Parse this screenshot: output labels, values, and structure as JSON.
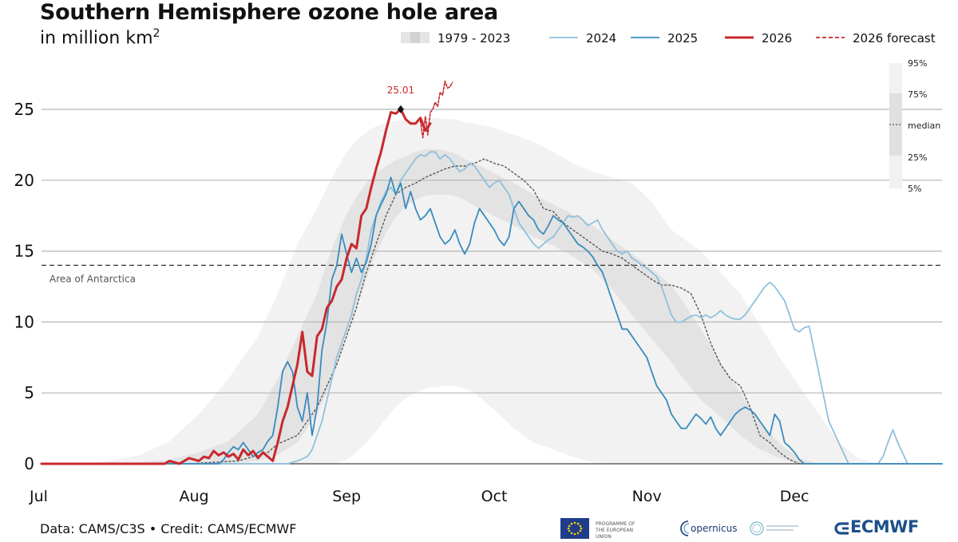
{
  "title": "Southern Hemisphere ozone hole area",
  "subtitle_prefix": "in million km",
  "subtitle_sup": "2",
  "credit": "Data: CAMS/C3S • Credit: CAMS/ECMWF",
  "logos": {
    "eu_line1": "PROGRAMME OF",
    "eu_line2": "THE EUROPEAN UNION",
    "copernicus": "opernicus",
    "ecmwf": "ECMWF"
  },
  "colors": {
    "y2024": "#8fc0dc",
    "y2025": "#3a8bbd",
    "y2026": "#c8282d",
    "median": "#555555",
    "band_outer": "#f2f2f2",
    "band_inner": "#e3e3e3",
    "grid": "#b5b5b5"
  },
  "chart_data": {
    "type": "line",
    "x_unit": "day of season starting Jul 1",
    "xlim": [
      0,
      183
    ],
    "ylim": [
      0,
      27.5
    ],
    "x_ticks": [
      {
        "label": "Jul",
        "day": 0
      },
      {
        "label": "Aug",
        "day": 31
      },
      {
        "label": "Sep",
        "day": 62
      },
      {
        "label": "Oct",
        "day": 92
      },
      {
        "label": "Nov",
        "day": 123
      },
      {
        "label": "Dec",
        "day": 153
      }
    ],
    "y_ticks": [
      0,
      5,
      10,
      15,
      20,
      25
    ],
    "grid": true,
    "legend_position": "top",
    "legend": [
      {
        "label": "1979 - 2023",
        "kind": "band"
      },
      {
        "label": "2024",
        "kind": "line",
        "series": "2024"
      },
      {
        "label": "2025",
        "kind": "line",
        "series": "2025"
      },
      {
        "label": "2026",
        "kind": "line",
        "series": "2026"
      },
      {
        "label": "2026 forecast",
        "kind": "dashed",
        "series": "2026 forecast"
      }
    ],
    "percentile_legend": [
      "95%",
      "75%",
      "median",
      "25%",
      "5%"
    ],
    "reference_line": {
      "label": "Area of Antarctica",
      "y": 14.0
    },
    "peak_annotation": {
      "label": "25.01",
      "x": 73,
      "y": 25.01
    },
    "bands": {
      "x": [
        0,
        10,
        20,
        26,
        32,
        38,
        44,
        48,
        52,
        56,
        58,
        60,
        62,
        64,
        66,
        68,
        70,
        72,
        74,
        76,
        78,
        80,
        82,
        84,
        86,
        88,
        92,
        96,
        100,
        104,
        108,
        112,
        116,
        120,
        124,
        126,
        128,
        130,
        134,
        138,
        142,
        146,
        150,
        154,
        158,
        162,
        166,
        170,
        174,
        178,
        183
      ],
      "p5": [
        0,
        0,
        0,
        0,
        0,
        0,
        0,
        0,
        0,
        0,
        0,
        0,
        0.3,
        0.8,
        1.5,
        2.3,
        3.2,
        4.0,
        4.6,
        5.0,
        5.3,
        5.4,
        5.5,
        5.5,
        5.3,
        5.0,
        3.8,
        2.5,
        1.5,
        1.0,
        0.5,
        0.1,
        0,
        0,
        0,
        0,
        0,
        0,
        0,
        0,
        0,
        0,
        0,
        0,
        0,
        0,
        0,
        0,
        0,
        0,
        0
      ],
      "p25": [
        0,
        0,
        0,
        0,
        0,
        0,
        0.2,
        0.6,
        1.5,
        3.5,
        5.0,
        6.8,
        9.0,
        11.0,
        13.0,
        14.8,
        16.3,
        17.4,
        18.2,
        18.6,
        18.9,
        19.0,
        19.0,
        18.9,
        18.6,
        18.2,
        17.5,
        16.8,
        16.0,
        15.4,
        14.6,
        13.7,
        12.3,
        10.5,
        8.8,
        8.0,
        7.2,
        6.2,
        4.5,
        3.3,
        2.0,
        1.0,
        0.4,
        0,
        0,
        0,
        0,
        0,
        0,
        0,
        0
      ],
      "p75": [
        0,
        0,
        0.1,
        0.3,
        0.8,
        1.6,
        3.5,
        6.0,
        9.0,
        12.0,
        14.2,
        16.0,
        17.6,
        18.8,
        19.8,
        20.5,
        21.0,
        21.4,
        21.7,
        22.0,
        22.2,
        22.2,
        22.1,
        21.9,
        21.5,
        21.2,
        20.5,
        19.8,
        19.0,
        18.3,
        17.6,
        16.8,
        15.8,
        14.8,
        13.8,
        13.2,
        12.6,
        11.6,
        9.5,
        7.2,
        5.0,
        3.0,
        1.4,
        0.4,
        0,
        0,
        0,
        0,
        0,
        0,
        0
      ],
      "p95": [
        0,
        0,
        0.6,
        1.6,
        3.5,
        6.0,
        9.0,
        12.0,
        15.5,
        18.0,
        19.5,
        20.8,
        22.0,
        22.8,
        23.4,
        23.8,
        24.0,
        24.2,
        24.2,
        24.3,
        24.4,
        24.4,
        24.3,
        24.3,
        24.1,
        24.0,
        23.7,
        23.2,
        22.7,
        22.0,
        21.2,
        20.6,
        20.2,
        19.8,
        18.5,
        17.5,
        16.5,
        16.0,
        15.0,
        13.5,
        12.0,
        9.8,
        7.5,
        5.5,
        3.5,
        1.5,
        0.4,
        0,
        0,
        0,
        0
      ]
    },
    "series": [
      {
        "name": "median",
        "style": "dotted",
        "x": [
          0,
          30,
          40,
          46,
          48,
          52,
          56,
          60,
          62,
          64,
          66,
          68,
          70,
          72,
          74,
          76,
          78,
          80,
          82,
          84,
          86,
          88,
          90,
          92,
          94,
          96,
          98,
          100,
          102,
          104,
          106,
          108,
          110,
          112,
          114,
          116,
          118,
          120,
          122,
          124,
          126,
          128,
          130,
          132,
          134,
          136,
          138,
          140,
          142,
          144,
          146,
          148,
          150,
          152,
          154,
          156,
          158,
          160,
          183
        ],
        "y": [
          0,
          0,
          0.2,
          0.8,
          1.4,
          2.0,
          4.0,
          7.0,
          9.0,
          11.0,
          13.5,
          15.5,
          17.5,
          19.0,
          19.5,
          19.8,
          20.2,
          20.5,
          20.8,
          21.0,
          21.0,
          21.2,
          21.5,
          21.2,
          21.0,
          20.5,
          20.0,
          19.3,
          18.0,
          17.8,
          17.0,
          16.5,
          16.0,
          15.5,
          15.0,
          14.8,
          14.5,
          14.0,
          13.5,
          13.0,
          12.6,
          12.6,
          12.4,
          12.0,
          10.5,
          8.5,
          7.0,
          6.0,
          5.5,
          4.0,
          2.0,
          1.5,
          0.8,
          0.3,
          0,
          0,
          0,
          0,
          0
        ]
      },
      {
        "name": "2024",
        "x": [
          0,
          50,
          52,
          54,
          55,
          56,
          57,
          58,
          59,
          60,
          61,
          62,
          63,
          64,
          65,
          66,
          67,
          68,
          69,
          70,
          71,
          72,
          73,
          74,
          75,
          76,
          77,
          78,
          79,
          80,
          81,
          82,
          83,
          84,
          85,
          86,
          87,
          88,
          89,
          90,
          91,
          92,
          93,
          94,
          95,
          96,
          97,
          98,
          99,
          100,
          101,
          102,
          103,
          104,
          105,
          106,
          107,
          108,
          109,
          110,
          111,
          112,
          113,
          114,
          115,
          116,
          117,
          118,
          119,
          120,
          121,
          122,
          123,
          124,
          125,
          126,
          127,
          128,
          129,
          130,
          131,
          132,
          133,
          134,
          135,
          136,
          137,
          138,
          139,
          140,
          141,
          142,
          143,
          144,
          145,
          146,
          147,
          148,
          149,
          150,
          151,
          152,
          153,
          154,
          155,
          156,
          160,
          164,
          166,
          168,
          170,
          171,
          172,
          173,
          174,
          176,
          183
        ],
        "y": [
          0,
          0,
          0.2,
          0.5,
          1.0,
          2.0,
          3.0,
          4.5,
          6.0,
          7.5,
          8.5,
          9.5,
          10.5,
          12.0,
          13.0,
          14.5,
          16.5,
          17.5,
          18.5,
          19.2,
          19.5,
          19.0,
          20.0,
          20.5,
          21.0,
          21.5,
          21.8,
          21.7,
          22.0,
          22.0,
          21.5,
          21.8,
          21.5,
          21.0,
          20.6,
          20.8,
          21.2,
          21.0,
          20.5,
          20.0,
          19.5,
          19.8,
          20.0,
          19.5,
          19.0,
          18.0,
          17.0,
          16.5,
          16.0,
          15.5,
          15.2,
          15.5,
          15.8,
          16.0,
          16.5,
          17.0,
          17.5,
          17.4,
          17.5,
          17.2,
          16.8,
          17.0,
          17.2,
          16.5,
          16.0,
          15.5,
          15.0,
          14.8,
          15.0,
          14.5,
          14.3,
          14.0,
          13.8,
          13.5,
          13.2,
          12.5,
          11.5,
          10.5,
          10.0,
          10.0,
          10.2,
          10.4,
          10.5,
          10.3,
          10.5,
          10.3,
          10.5,
          10.8,
          10.5,
          10.3,
          10.2,
          10.2,
          10.5,
          11.0,
          11.5,
          12.0,
          12.5,
          12.8,
          12.5,
          12.0,
          11.5,
          10.5,
          9.5,
          9.3,
          9.6,
          9.7,
          3.0,
          0,
          0,
          0,
          0,
          0.5,
          1.5,
          2.4,
          1.5,
          0,
          0
        ]
      },
      {
        "name": "2025",
        "x": [
          0,
          36,
          37,
          38,
          39,
          40,
          41,
          42,
          43,
          44,
          45,
          46,
          47,
          48,
          49,
          50,
          51,
          52,
          53,
          54,
          55,
          56,
          57,
          58,
          59,
          60,
          61,
          62,
          63,
          64,
          65,
          66,
          67,
          68,
          69,
          70,
          71,
          72,
          73,
          74,
          75,
          76,
          77,
          78,
          79,
          80,
          81,
          82,
          83,
          84,
          85,
          86,
          87,
          88,
          89,
          90,
          91,
          92,
          93,
          94,
          95,
          96,
          97,
          98,
          99,
          100,
          101,
          102,
          103,
          104,
          105,
          106,
          107,
          108,
          109,
          110,
          111,
          112,
          113,
          114,
          115,
          116,
          117,
          118,
          119,
          120,
          121,
          122,
          123,
          124,
          125,
          126,
          127,
          128,
          129,
          130,
          131,
          132,
          133,
          134,
          135,
          136,
          137,
          138,
          139,
          140,
          141,
          142,
          143,
          144,
          145,
          146,
          147,
          148,
          149,
          150,
          151,
          152,
          153,
          154,
          155,
          183
        ],
        "y": [
          0,
          0,
          0.3,
          0.8,
          1.2,
          1.0,
          1.5,
          1.0,
          0.5,
          0.8,
          1.0,
          1.6,
          2.0,
          4.0,
          6.5,
          7.2,
          6.5,
          4.0,
          3.0,
          5.0,
          2.0,
          4.0,
          8.0,
          10.0,
          13.0,
          14.0,
          16.2,
          14.8,
          13.5,
          14.5,
          13.5,
          14.2,
          15.5,
          17.5,
          18.3,
          19.0,
          20.2,
          19.0,
          19.8,
          18.0,
          19.2,
          18.0,
          17.2,
          17.5,
          18.0,
          17.0,
          16.0,
          15.5,
          15.8,
          16.5,
          15.5,
          14.8,
          15.5,
          17.0,
          18.0,
          17.5,
          17.0,
          16.5,
          15.8,
          15.4,
          16.0,
          18.0,
          18.5,
          18.0,
          17.5,
          17.2,
          16.5,
          16.2,
          16.8,
          17.5,
          17.2,
          17.0,
          16.5,
          16.0,
          15.5,
          15.3,
          15.0,
          14.6,
          14.0,
          13.5,
          12.5,
          11.5,
          10.5,
          9.5,
          9.5,
          9.0,
          8.5,
          8.0,
          7.5,
          6.5,
          5.5,
          5.0,
          4.5,
          3.5,
          3.0,
          2.5,
          2.5,
          3.0,
          3.5,
          3.2,
          2.8,
          3.3,
          2.5,
          2.0,
          2.5,
          3.0,
          3.5,
          3.8,
          4.0,
          3.8,
          3.5,
          3.0,
          2.5,
          2.0,
          3.5,
          3.0,
          1.5,
          1.2,
          0.8,
          0.3,
          0,
          0
        ]
      },
      {
        "name": "2026",
        "x": [
          0,
          25,
          26,
          27,
          28,
          29,
          30,
          31,
          32,
          33,
          34,
          35,
          36,
          37,
          38,
          39,
          40,
          41,
          42,
          43,
          44,
          45,
          46,
          47,
          48,
          49,
          50,
          51,
          52,
          53,
          54,
          55,
          56,
          57,
          58,
          59,
          60,
          61,
          62,
          63,
          64,
          65,
          66,
          67,
          68,
          69,
          70,
          71,
          72,
          73,
          74,
          75,
          76,
          77,
          78,
          79
        ],
        "y": [
          0,
          0,
          0.2,
          0.1,
          0,
          0.2,
          0.4,
          0.3,
          0.2,
          0.5,
          0.4,
          0.9,
          0.6,
          0.8,
          0.5,
          0.7,
          0.3,
          1.0,
          0.6,
          0.9,
          0.4,
          0.8,
          0.5,
          0.2,
          1.5,
          3.0,
          4.0,
          5.5,
          7.0,
          9.3,
          6.5,
          6.2,
          9.0,
          9.5,
          11.0,
          11.5,
          12.5,
          13.0,
          14.5,
          15.5,
          15.2,
          17.5,
          18.0,
          19.5,
          20.8,
          22.0,
          23.5,
          24.8,
          24.7,
          25.01,
          24.3,
          24.0,
          24.0,
          24.4,
          23.5,
          24.0
        ]
      },
      {
        "name": "2026 forecast",
        "style": "dashed",
        "x": [
          77,
          77.5,
          78,
          78.5,
          79,
          79.5,
          80,
          80.5,
          81,
          81.5,
          82,
          82.5,
          83,
          83.5
        ],
        "y": [
          24.2,
          23.0,
          24.5,
          23.2,
          24.8,
          25.0,
          25.5,
          25.2,
          26.2,
          26.0,
          27.0,
          26.5,
          26.6,
          26.9
        ]
      }
    ]
  }
}
